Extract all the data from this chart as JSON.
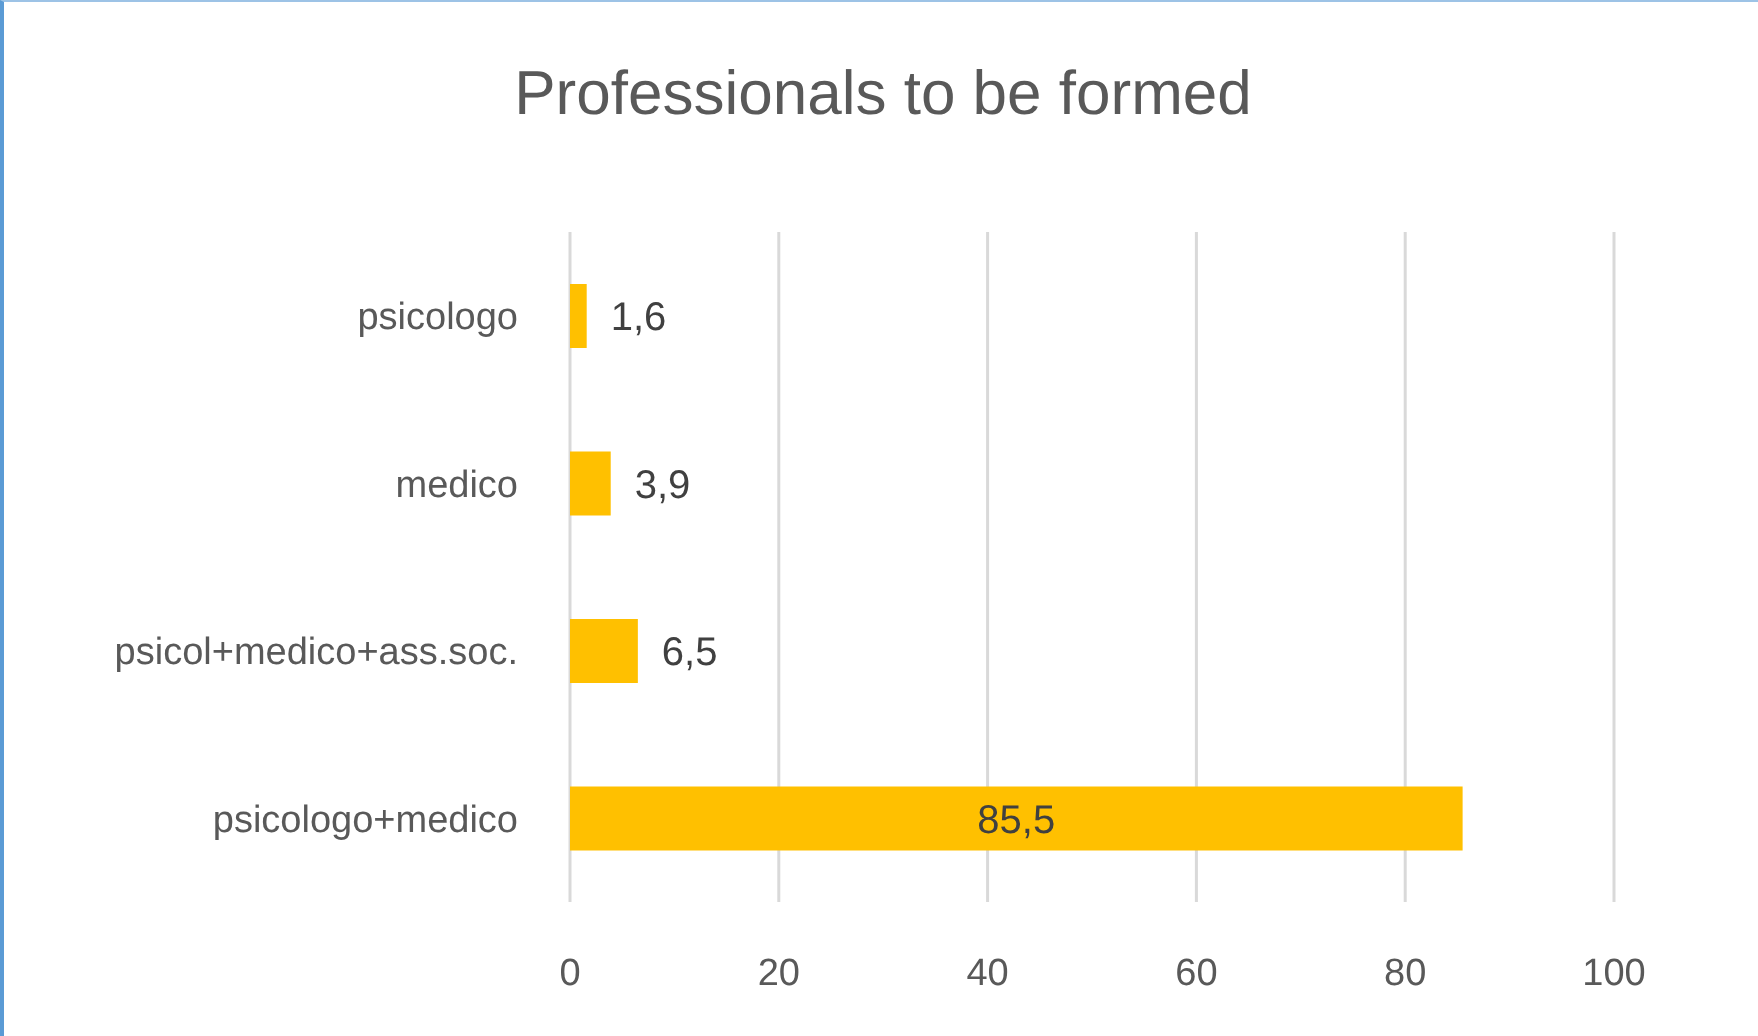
{
  "chart_data": {
    "type": "bar",
    "title": "Professionals to be formed",
    "orientation": "horizontal",
    "categories": [
      "psicologo",
      "medico",
      "psicol+medico+ass.soc.",
      "psicologo+medico"
    ],
    "series": [
      {
        "color": "#ffc000",
        "values": [
          1.6,
          3.9,
          6.5,
          85.5
        ],
        "value_labels": [
          "1,6",
          "3,9",
          "6,5",
          "85,5"
        ]
      }
    ],
    "xlim": [
      0,
      100
    ],
    "xticks": [
      0,
      20,
      40,
      60,
      80,
      100
    ],
    "grid": "x"
  }
}
